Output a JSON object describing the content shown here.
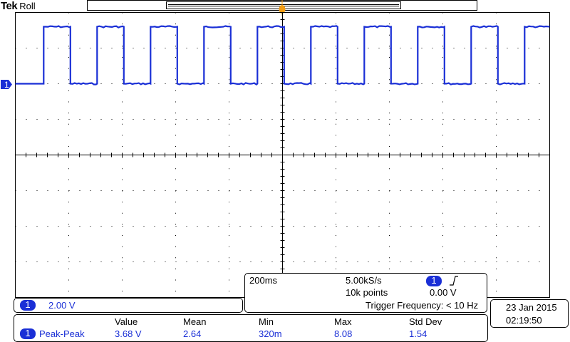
{
  "header": {
    "brand": "Tek",
    "mode": "Roll"
  },
  "channel": {
    "number": "1",
    "scale": "2.00 V",
    "color": "#1a2fd6"
  },
  "timebase": {
    "horizontal_scale": "200ms",
    "sample_rate": "5.00kS/s",
    "record_length": "10k points",
    "trigger_source": "1",
    "trigger_slope": "rising-edge",
    "trigger_level": "0.00 V",
    "trigger_frequency": "Trigger Frequency: < 10 Hz"
  },
  "datetime": {
    "date": "23 Jan  2015",
    "time": "02:19:50"
  },
  "measurement": {
    "headers": [
      "Value",
      "Mean",
      "Min",
      "Max",
      "Std Dev"
    ],
    "source": "1",
    "name": "Peak-Peak",
    "values": [
      "3.68 V",
      "2.64",
      "320m",
      "8.08",
      "1.54"
    ]
  },
  "waveform": {
    "type": "square",
    "high_level_div": 1.9,
    "low_level_div": 0.8,
    "periods_on_screen": 10
  }
}
